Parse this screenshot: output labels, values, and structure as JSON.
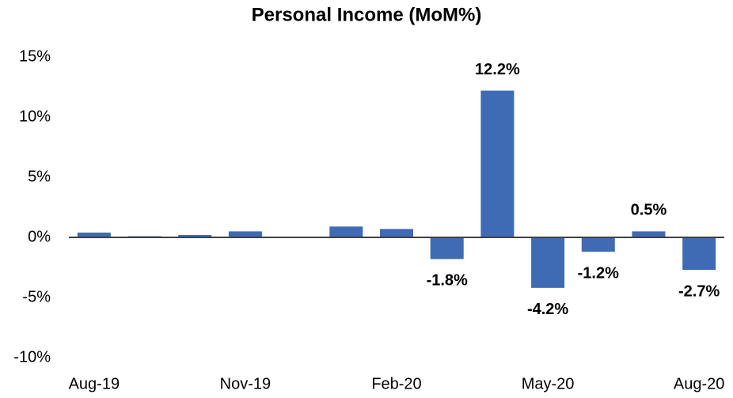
{
  "chart_data": {
    "type": "bar",
    "title": "Personal Income (MoM%)",
    "categories": [
      "Aug-19",
      null,
      null,
      "Nov-19",
      null,
      null,
      "Feb-20",
      null,
      null,
      "May-20",
      null,
      null,
      "Aug-20"
    ],
    "values": [
      0.4,
      0.1,
      0.2,
      0.5,
      0.0,
      0.9,
      0.7,
      -1.8,
      12.2,
      -4.2,
      -1.2,
      0.5,
      -2.7
    ],
    "value_labels": [
      null,
      null,
      null,
      null,
      null,
      null,
      null,
      "-1.8%",
      "12.2%",
      "-4.2%",
      "-1.2%",
      "0.5%",
      "-2.7%"
    ],
    "color": "#3f6bb5",
    "ylim": [
      -10,
      15
    ],
    "yticks": [
      {
        "value": -10,
        "label": "-10%"
      },
      {
        "value": -5,
        "label": "-5%"
      },
      {
        "value": 0,
        "label": "0%"
      },
      {
        "value": 5,
        "label": "5%"
      },
      {
        "value": 10,
        "label": "10%"
      },
      {
        "value": 15,
        "label": "15%"
      }
    ],
    "grid": false
  }
}
